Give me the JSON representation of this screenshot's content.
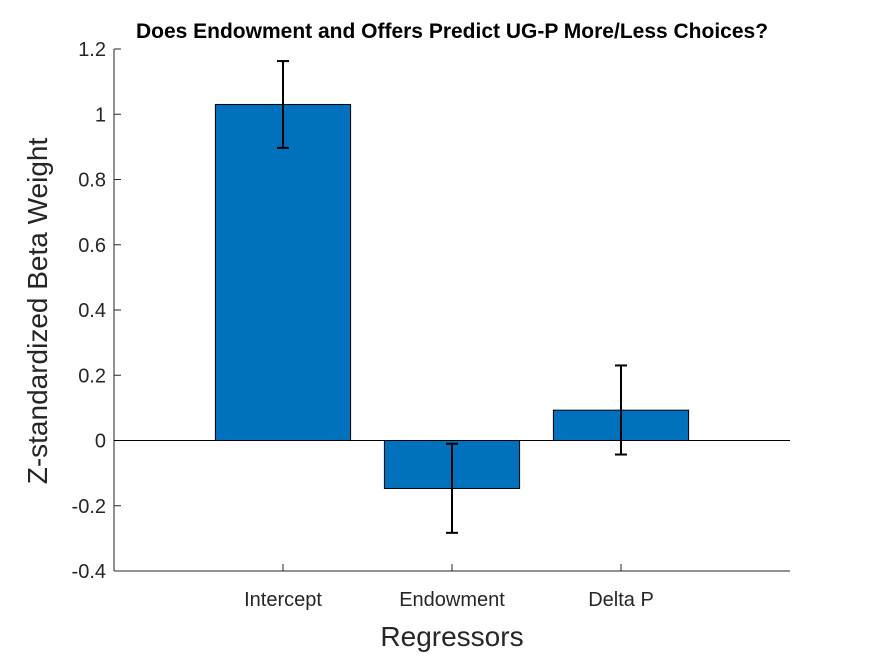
{
  "chart_data": {
    "type": "bar",
    "title": "Does Endowment and Offers Predict UG-P More/Less Choices?",
    "xlabel": "Regressors",
    "ylabel": "Z-standardized Beta Weight",
    "categories": [
      "Intercept",
      "Endowment",
      "Delta P"
    ],
    "values": [
      1.03,
      -0.147,
      0.093
    ],
    "error_low": [
      0.897,
      -0.283,
      -0.043
    ],
    "error_high": [
      1.163,
      -0.01,
      0.23
    ],
    "ylim": [
      -0.4,
      1.2
    ],
    "yticks": [
      -0.4,
      -0.2,
      0,
      0.2,
      0.4,
      0.6,
      0.8,
      1,
      1.2
    ],
    "ytick_labels": [
      "-0.4",
      "-0.2",
      "0",
      "0.2",
      "0.4",
      "0.6",
      "0.8",
      "1",
      "1.2"
    ],
    "bar_color": "#0072BD",
    "error_color": "#000000",
    "grid": false,
    "legend": "none"
  }
}
